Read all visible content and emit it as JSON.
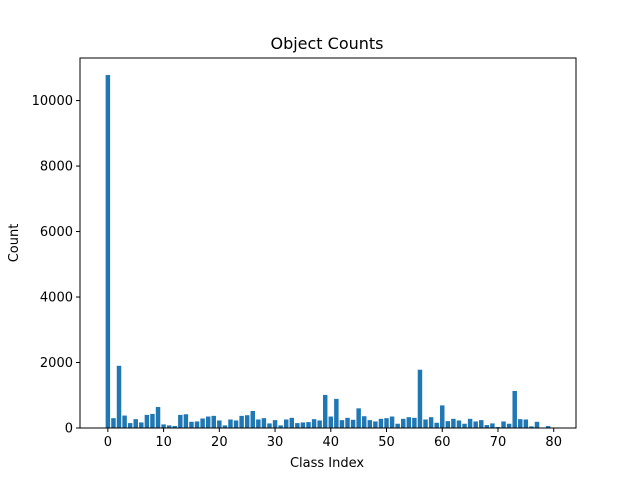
{
  "chart_data": {
    "type": "bar",
    "title": "Object Counts",
    "xlabel": "Class Index",
    "ylabel": "Count",
    "xlim": [
      -5.0,
      84.0
    ],
    "ylim": [
      0,
      11300
    ],
    "xticks": [
      0,
      10,
      20,
      30,
      40,
      50,
      60,
      70,
      80
    ],
    "yticks": [
      0,
      2000,
      4000,
      6000,
      8000,
      10000
    ],
    "grid": false,
    "bar_color": "#1f77b4",
    "x": [
      0,
      1,
      2,
      3,
      4,
      5,
      6,
      7,
      8,
      9,
      10,
      11,
      12,
      13,
      14,
      15,
      16,
      17,
      18,
      19,
      20,
      21,
      22,
      23,
      24,
      25,
      26,
      27,
      28,
      29,
      30,
      31,
      32,
      33,
      34,
      35,
      36,
      37,
      38,
      39,
      40,
      41,
      42,
      43,
      44,
      45,
      46,
      47,
      48,
      49,
      50,
      51,
      52,
      53,
      54,
      55,
      56,
      57,
      58,
      59,
      60,
      61,
      62,
      63,
      64,
      65,
      66,
      67,
      68,
      69,
      70,
      71,
      72,
      73,
      74,
      75,
      76,
      77,
      78,
      79
    ],
    "values": [
      10780,
      300,
      1900,
      380,
      150,
      270,
      170,
      400,
      430,
      640,
      110,
      80,
      60,
      400,
      420,
      190,
      200,
      290,
      350,
      370,
      230,
      80,
      260,
      230,
      370,
      390,
      520,
      260,
      300,
      140,
      240,
      80,
      260,
      310,
      150,
      170,
      180,
      270,
      230,
      1010,
      350,
      890,
      240,
      310,
      250,
      600,
      360,
      240,
      200,
      280,
      300,
      350,
      130,
      280,
      330,
      310,
      1780,
      260,
      330,
      160,
      690,
      210,
      280,
      230,
      130,
      280,
      200,
      240,
      90,
      140,
      30,
      200,
      130,
      1130,
      270,
      260,
      50,
      190,
      10,
      60
    ]
  }
}
